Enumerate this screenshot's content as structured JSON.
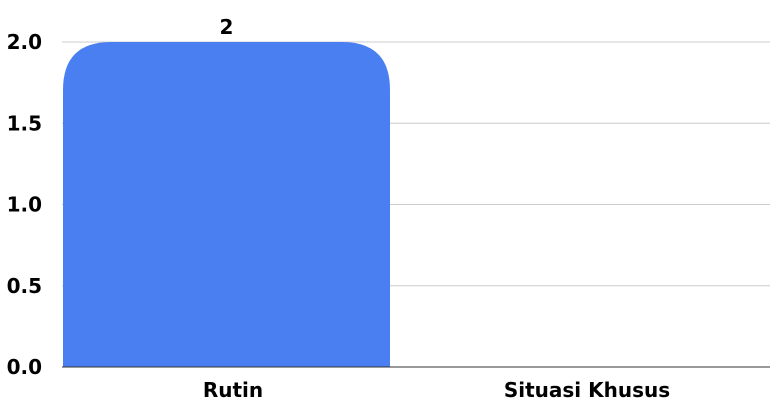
{
  "chart_data": {
    "type": "bar",
    "categories": [
      "Rutin",
      "Situasi Khusus"
    ],
    "values": [
      2,
      0
    ],
    "data_labels": [
      "2",
      ""
    ],
    "y_ticks": [
      "0.0",
      "0.5",
      "1.0",
      "1.5",
      "2.0"
    ],
    "ylim": [
      0,
      2
    ],
    "title": "",
    "xlabel": "",
    "ylabel": "",
    "grid": true,
    "bar_color": "#4a7ff2",
    "grid_color": "#cccccc",
    "axis_color": "#333333"
  }
}
